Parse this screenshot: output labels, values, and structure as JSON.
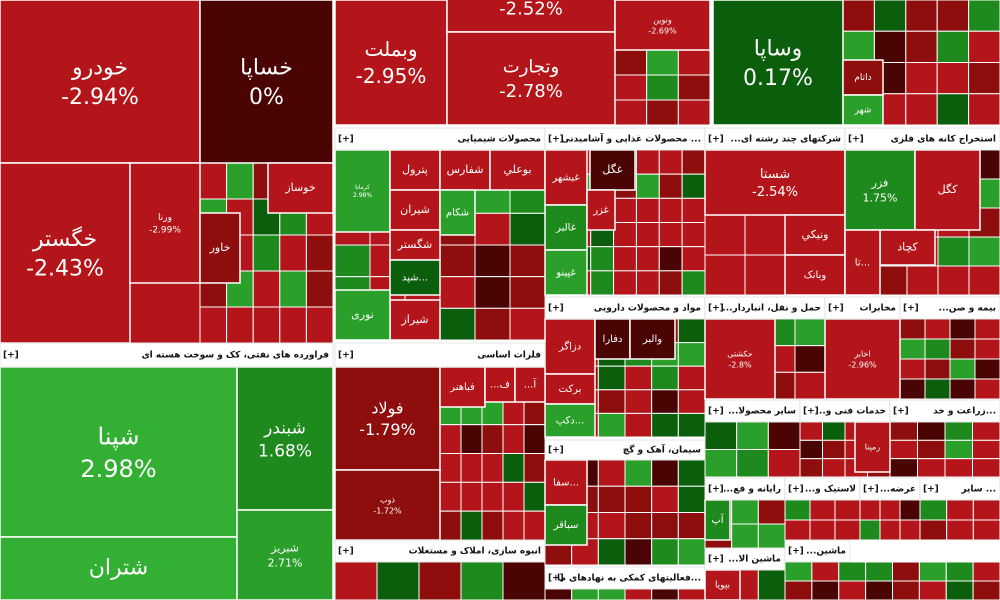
{
  "expand_label": "[+]",
  "sectors": [
    {
      "tiles": [
        {
          "name": "خودرو",
          "change": "-2.94%"
        },
        {
          "name": "خساپا",
          "change": "0%"
        },
        {
          "name": "خگستر",
          "change": "-2.43%"
        },
        {
          "name": "ورنا",
          "change": "-2.99%"
        },
        {
          "name": "خوساز"
        },
        {
          "name": "خاور"
        }
      ]
    },
    {
      "tiles": [
        {
          "name": "وبملت",
          "change": "-2.95%"
        },
        {
          "change": "-2.52%"
        },
        {
          "name": "وتجارت",
          "change": "-2.78%"
        },
        {
          "name": "ونوین",
          "change": "-2.69%"
        }
      ]
    },
    {
      "tiles": [
        {
          "name": "وساپا",
          "change": "0.17%"
        },
        {
          "name": "داتام"
        },
        {
          "name": "شهر"
        }
      ]
    },
    {
      "title": "محصولات شیمیایی",
      "tiles": [
        {
          "name": "کرمانا",
          "change": "2.98%"
        },
        {
          "name": "پترول"
        },
        {
          "name": "شفارس"
        },
        {
          "name": "بوعلي"
        },
        {
          "name": "شیران"
        },
        {
          "name": "شکام"
        },
        {
          "name": "شگستر"
        },
        {
          "name": "شپد..."
        },
        {
          "name": "شیراز"
        },
        {
          "name": "نوری"
        }
      ]
    },
    {
      "title": "محصولات غذایی و آشامیدنی ...",
      "tiles": [
        {
          "name": "غبشهر"
        },
        {
          "name": "غگل"
        },
        {
          "name": "غالبر"
        },
        {
          "name": "غزر"
        },
        {
          "name": "غپینو"
        }
      ]
    },
    {
      "title": "...شرکتهای چند رشته ای",
      "tiles": [
        {
          "name": "شستا",
          "change": "-2.54%"
        },
        {
          "name": "ونیکي"
        },
        {
          "name": "وبانک"
        }
      ]
    },
    {
      "title": "استخراج کانه های فلزی",
      "tiles": [
        {
          "name": "فزر",
          "change": "1.75%"
        },
        {
          "name": "کگل"
        },
        {
          "name": "کچاد"
        },
        {
          "name": "تا..."
        }
      ]
    },
    {
      "title": "مواد و محصولات دارویی",
      "tiles": [
        {
          "name": "دزاگر"
        },
        {
          "name": "دفارا"
        },
        {
          "name": "والبر"
        },
        {
          "name": "برکت"
        },
        {
          "name": "دکپ..."
        }
      ]
    },
    {
      "title": "...حمل و نقل، انباردار",
      "tiles": [
        {
          "name": "حکشتی",
          "change": "-2.8%"
        }
      ]
    },
    {
      "title": "مخابرات",
      "tiles": [
        {
          "name": "اخابر",
          "change": "-2.96%"
        }
      ]
    },
    {
      "title": "...بیمه و صن",
      "tiles": []
    },
    {
      "title": "فراورده های نفتی، کک و سوخت هسته ای",
      "tiles": [
        {
          "name": "شپنا",
          "change": "2.98%"
        },
        {
          "name": "شتران"
        },
        {
          "name": "شبندر",
          "change": "1.68%"
        },
        {
          "name": "شبریز",
          "change": "2.71%"
        }
      ]
    },
    {
      "title": "فلزات اساسی",
      "tiles": [
        {
          "name": "فولاد",
          "change": "-1.79%"
        },
        {
          "name": "ذوب",
          "change": "-1.72%"
        },
        {
          "name": "فباهنر"
        },
        {
          "name": "...ف"
        },
        {
          "name": "...آ"
        }
      ]
    },
    {
      "title": "سیمان، آهک و گچ",
      "tiles": [
        {
          "name": "سفا..."
        },
        {
          "name": "سباقر"
        }
      ]
    },
    {
      "title": "انبوه سازی، املاک و مستغلات",
      "tiles": []
    },
    {
      "title": "فعالیتهای کمکی به نهادهای ما...",
      "tiles": []
    },
    {
      "title": "...سایر محصولا",
      "tiles": []
    },
    {
      "title": "...خدمات فنی و",
      "tiles": [
        {
          "name": "رمپنا"
        }
      ]
    },
    {
      "title": "زراعت و خد...",
      "tiles": []
    },
    {
      "title": "...رایانه و فع",
      "tiles": [
        {
          "name": "آپ"
        }
      ]
    },
    {
      "title": "...لاستیک و",
      "tiles": []
    },
    {
      "title": "...عرضه",
      "tiles": []
    },
    {
      "title": "سایر ...",
      "tiles": []
    },
    {
      "title": "...ماشین الا",
      "tiles": [
        {
          "name": "بپویا"
        }
      ]
    },
    {
      "title": "...ماشین",
      "tiles": []
    }
  ]
}
